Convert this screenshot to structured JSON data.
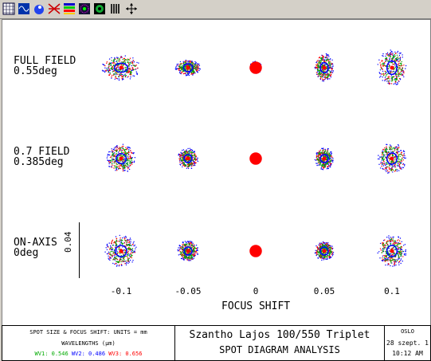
{
  "toolbar": {
    "icons": [
      "grid-icon",
      "wave-icon",
      "paint-icon",
      "rays-icon",
      "bands-icon",
      "dots-icon",
      "circle-icon",
      "columns-icon",
      "arrows-icon"
    ]
  },
  "rows": [
    {
      "line1": "FULL FIELD",
      "line2": "0.55deg"
    },
    {
      "line1": "0.7 FIELD",
      "line2": "0.385deg"
    },
    {
      "line1": "ON-AXIS",
      "line2": "0deg"
    }
  ],
  "scale_label": "0.04",
  "x_ticks": [
    "-0.1",
    "-0.05",
    "0",
    "0.05",
    "0.1"
  ],
  "x_axis_label": "FOCUS SHIFT",
  "footer": {
    "spot_units": "SPOT SIZE & FOCUS SHIFT: UNITS = mm",
    "wavelengths_title": "WAVELENGTHS (µm)",
    "wl1": "WV1: 0.546",
    "wl2": "WV2: 0.486",
    "wl3": "WV3: 0.656",
    "title": "Szantho Lajos 100/550 Triplet",
    "subtitle": "SPOT DIAGRAM ANALYSIS",
    "program": "OSLO",
    "date": "28 szept. 1",
    "time": "10:12 AM"
  },
  "colors": {
    "wv1": "#00aa00",
    "wv2": "#0000ff",
    "wv3": "#ff0000"
  }
}
